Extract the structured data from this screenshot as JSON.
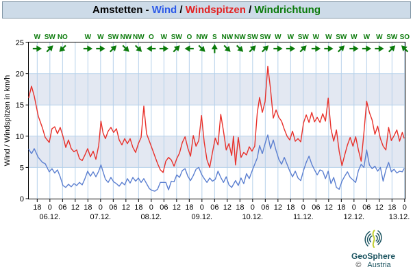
{
  "title": {
    "station": "Amstetten - ",
    "wind": "Wind",
    "sep1": " / ",
    "peaks": "Windspitzen",
    "sep2": " / ",
    "direction": "Windrichtung"
  },
  "logo": {
    "brand": "GeoSphere",
    "country": "Austria",
    "copyright": "©"
  },
  "colors": {
    "wind_line": "#5b7fd0",
    "peaks_line": "#e8302a",
    "direction_green": "#0a7a0a",
    "grid": "#b5d0ea",
    "band": "#e3e8f2",
    "titlebar_bg": "#cddbe8",
    "border": "#000000",
    "logo_teal": "#1a535f",
    "logo_lime": "#c1cf2e"
  },
  "chart_data": {
    "type": "line",
    "title": "Amstetten - Wind / Windspitzen / Windrichtung",
    "ylabel": "Wind / Windspitzen in km/h",
    "ylim": [
      0,
      25
    ],
    "yticks": [
      0,
      5,
      10,
      15,
      20,
      25
    ],
    "grid": true,
    "legend_position": "in-title",
    "hour_ticks": [
      "18",
      "0",
      "06",
      "12",
      "18",
      "0",
      "06",
      "12",
      "18",
      "0",
      "06",
      "12",
      "18",
      "0",
      "06",
      "12",
      "18",
      "0",
      "06",
      "12",
      "18",
      "0",
      "06",
      "12",
      "18",
      "0",
      "06",
      "12",
      "18",
      "0"
    ],
    "date_labels": [
      "06.12.",
      "07.12.",
      "08.12.",
      "09.12.",
      "10.12.",
      "11.12.",
      "12.12.",
      "13.12."
    ],
    "wind_directions": [
      "W",
      "SW",
      "NO",
      null,
      "W",
      "W",
      "SW",
      "NW",
      "NW",
      "O",
      "W",
      "SW",
      "O",
      "NW",
      "S",
      "NW",
      "NW",
      "SW",
      "SW",
      "W",
      "W",
      "SW",
      "W",
      "W",
      "SW",
      "W",
      "W",
      "W",
      "SW",
      "SO"
    ],
    "direction_series_name": "Windrichtung",
    "series": [
      {
        "name": "Wind",
        "unit": "km/h",
        "points": [
          [
            0,
            7.9
          ],
          [
            1.3,
            7.2
          ],
          [
            2.6,
            8.0
          ],
          [
            4.5,
            6.6
          ],
          [
            6.5,
            5.8
          ],
          [
            7.8,
            5.6
          ],
          [
            9.7,
            4.3
          ],
          [
            11,
            4.8
          ],
          [
            12.3,
            4.1
          ],
          [
            13.6,
            4.6
          ],
          [
            14.9,
            3.5
          ],
          [
            16.2,
            2.1
          ],
          [
            17.5,
            1.8
          ],
          [
            18.8,
            2.3
          ],
          [
            20.1,
            1.9
          ],
          [
            21.4,
            2.4
          ],
          [
            22.7,
            2.1
          ],
          [
            24,
            2.6
          ],
          [
            25.3,
            2.2
          ],
          [
            26.6,
            3.2
          ],
          [
            27.9,
            4.4
          ],
          [
            29.2,
            3.6
          ],
          [
            30.5,
            4.3
          ],
          [
            31.8,
            3.5
          ],
          [
            33.1,
            4.4
          ],
          [
            34.2,
            5.4
          ],
          [
            35.2,
            4.3
          ],
          [
            36.3,
            3.1
          ],
          [
            37.6,
            2.6
          ],
          [
            38.9,
            3.4
          ],
          [
            40.2,
            2.7
          ],
          [
            41.5,
            2.4
          ],
          [
            42.8,
            2.0
          ],
          [
            44.1,
            2.6
          ],
          [
            45.4,
            2.2
          ],
          [
            46.7,
            3.2
          ],
          [
            48,
            2.5
          ],
          [
            49.3,
            3.4
          ],
          [
            50.6,
            2.8
          ],
          [
            51.9,
            3.3
          ],
          [
            53.2,
            2.6
          ],
          [
            54.5,
            3.2
          ],
          [
            55.8,
            2.4
          ],
          [
            57.1,
            1.6
          ],
          [
            58.4,
            1.3
          ],
          [
            59.7,
            1.2
          ],
          [
            61,
            1.5
          ],
          [
            62.3,
            2.6
          ],
          [
            63.6,
            2.6
          ],
          [
            64.9,
            2.6
          ],
          [
            66.2,
            1.4
          ],
          [
            67.5,
            2.8
          ],
          [
            68.8,
            2.7
          ],
          [
            70.1,
            3.8
          ],
          [
            71.4,
            3.4
          ],
          [
            72.7,
            4.5
          ],
          [
            74,
            4.8
          ],
          [
            75.3,
            3.6
          ],
          [
            76.6,
            2.9
          ],
          [
            77.9,
            3.7
          ],
          [
            79.2,
            4.7
          ],
          [
            80.5,
            5.0
          ],
          [
            81.8,
            3.9
          ],
          [
            83.1,
            3.2
          ],
          [
            84.4,
            2.6
          ],
          [
            85.7,
            3.3
          ],
          [
            87,
            2.8
          ],
          [
            88.3,
            3.1
          ],
          [
            89.6,
            4.4
          ],
          [
            90.9,
            3.4
          ],
          [
            92.2,
            2.6
          ],
          [
            93.5,
            3.5
          ],
          [
            94.8,
            2.2
          ],
          [
            96.1,
            1.8
          ],
          [
            97.9,
            2.9
          ],
          [
            99.2,
            2.1
          ],
          [
            100.5,
            3.3
          ],
          [
            101.8,
            2.4
          ],
          [
            103.1,
            4.0
          ],
          [
            104.4,
            3.2
          ],
          [
            105.7,
            4.4
          ],
          [
            107,
            5.5
          ],
          [
            108.2,
            6.5
          ],
          [
            109.3,
            8.5
          ],
          [
            110.6,
            7.2
          ],
          [
            111.9,
            8.8
          ],
          [
            113.2,
            10.2
          ],
          [
            114.5,
            8.0
          ],
          [
            115.8,
            9.4
          ],
          [
            117.1,
            7.7
          ],
          [
            118.4,
            6.3
          ],
          [
            119.7,
            5.5
          ],
          [
            121,
            6.6
          ],
          [
            122.3,
            5.5
          ],
          [
            123.6,
            4.4
          ],
          [
            124.9,
            3.5
          ],
          [
            126.2,
            4.4
          ],
          [
            127.5,
            3.3
          ],
          [
            128.8,
            2.9
          ],
          [
            130.1,
            4.5
          ],
          [
            131.4,
            5.8
          ],
          [
            132.7,
            6.8
          ],
          [
            134,
            5.5
          ],
          [
            135.3,
            4.6
          ],
          [
            136.6,
            3.8
          ],
          [
            137.9,
            4.6
          ],
          [
            139.2,
            4.4
          ],
          [
            140.5,
            3.2
          ],
          [
            141.8,
            4.4
          ],
          [
            143.1,
            2.4
          ],
          [
            144.4,
            3.4
          ],
          [
            145.7,
            1.8
          ],
          [
            147,
            1.5
          ],
          [
            148.3,
            2.8
          ],
          [
            149.6,
            3.6
          ],
          [
            150.9,
            4.3
          ],
          [
            152.2,
            3.4
          ],
          [
            153.5,
            3.0
          ],
          [
            154.8,
            2.6
          ],
          [
            156.1,
            4.5
          ],
          [
            157.4,
            5.5
          ],
          [
            158.7,
            5.0
          ],
          [
            160,
            7.8
          ],
          [
            161.3,
            5.4
          ],
          [
            162.6,
            4.8
          ],
          [
            163.9,
            5.2
          ],
          [
            165.2,
            4.4
          ],
          [
            166.5,
            5.0
          ],
          [
            167.8,
            2.8
          ],
          [
            169.1,
            4.6
          ],
          [
            170.4,
            5.8
          ],
          [
            171.7,
            4.3
          ],
          [
            173,
            4.7
          ],
          [
            174.3,
            4.1
          ],
          [
            175.6,
            4.4
          ],
          [
            176.9,
            4.3
          ],
          [
            177.7,
            4.8
          ]
        ]
      },
      {
        "name": "Windspitzen",
        "unit": "km/h",
        "points": [
          [
            0,
            16.2
          ],
          [
            1.3,
            18.0
          ],
          [
            2.6,
            16.4
          ],
          [
            4.5,
            13.2
          ],
          [
            6.5,
            11.3
          ],
          [
            7.8,
            9.8
          ],
          [
            9.7,
            9.0
          ],
          [
            11,
            11.2
          ],
          [
            12.3,
            11.5
          ],
          [
            13.6,
            10.4
          ],
          [
            14.9,
            11.4
          ],
          [
            16.2,
            10.0
          ],
          [
            17.5,
            8.2
          ],
          [
            18.8,
            9.4
          ],
          [
            20.1,
            8.0
          ],
          [
            21.4,
            7.5
          ],
          [
            22.7,
            7.8
          ],
          [
            24,
            6.4
          ],
          [
            25.3,
            6.1
          ],
          [
            26.6,
            7.0
          ],
          [
            27.9,
            8.0
          ],
          [
            29.2,
            6.7
          ],
          [
            30.5,
            7.6
          ],
          [
            31.8,
            6.3
          ],
          [
            33.1,
            8.5
          ],
          [
            34.2,
            12.4
          ],
          [
            35.2,
            10.5
          ],
          [
            36.3,
            9.6
          ],
          [
            37.6,
            10.8
          ],
          [
            38.9,
            11.4
          ],
          [
            40.2,
            10.6
          ],
          [
            41.5,
            11.2
          ],
          [
            42.8,
            9.4
          ],
          [
            44.1,
            8.6
          ],
          [
            45.4,
            9.6
          ],
          [
            46.7,
            8.8
          ],
          [
            48,
            9.6
          ],
          [
            49.3,
            8.2
          ],
          [
            50.6,
            7.4
          ],
          [
            51.9,
            8.8
          ],
          [
            53.2,
            9.8
          ],
          [
            54.5,
            14.8
          ],
          [
            55.8,
            10.4
          ],
          [
            57.1,
            9.2
          ],
          [
            58.4,
            8.0
          ],
          [
            59.7,
            6.8
          ],
          [
            61,
            5.6
          ],
          [
            62.3,
            4.6
          ],
          [
            63.6,
            4.2
          ],
          [
            64.9,
            6.0
          ],
          [
            66.2,
            6.6
          ],
          [
            67.5,
            6.2
          ],
          [
            68.8,
            5.2
          ],
          [
            70.1,
            6.4
          ],
          [
            71.4,
            7.3
          ],
          [
            72.7,
            9.0
          ],
          [
            74,
            9.9
          ],
          [
            75.3,
            8.1
          ],
          [
            76.6,
            6.8
          ],
          [
            77.9,
            10.1
          ],
          [
            79.2,
            8.4
          ],
          [
            80.5,
            9.3
          ],
          [
            81.8,
            13.3
          ],
          [
            83.1,
            9.0
          ],
          [
            84.4,
            6.2
          ],
          [
            85.7,
            5.0
          ],
          [
            87,
            7.4
          ],
          [
            88.3,
            9.7
          ],
          [
            89.6,
            8.6
          ],
          [
            90.9,
            13.5
          ],
          [
            92.2,
            10.8
          ],
          [
            93.5,
            7.8
          ],
          [
            94.8,
            8.8
          ],
          [
            96.1,
            6.9
          ],
          [
            96.9,
            10.0
          ],
          [
            97.9,
            5.4
          ],
          [
            99.2,
            9.8
          ],
          [
            100.5,
            6.6
          ],
          [
            101.8,
            7.4
          ],
          [
            103.1,
            7.0
          ],
          [
            104.4,
            8.3
          ],
          [
            105.7,
            7.6
          ],
          [
            107,
            8.4
          ],
          [
            108.2,
            13.7
          ],
          [
            109.3,
            16.2
          ],
          [
            110.6,
            13.8
          ],
          [
            111.9,
            15.5
          ],
          [
            113.2,
            21.2
          ],
          [
            114.5,
            17.5
          ],
          [
            115.8,
            12.9
          ],
          [
            117.1,
            14.2
          ],
          [
            118.4,
            13.0
          ],
          [
            119.7,
            12.4
          ],
          [
            121,
            11.1
          ],
          [
            122.3,
            10.0
          ],
          [
            123.6,
            9.4
          ],
          [
            124.9,
            10.8
          ],
          [
            126.2,
            9.2
          ],
          [
            127.5,
            9.6
          ],
          [
            128.8,
            9.1
          ],
          [
            130.1,
            12.1
          ],
          [
            131.4,
            13.4
          ],
          [
            132.7,
            12.2
          ],
          [
            134,
            13.8
          ],
          [
            135.3,
            12.3
          ],
          [
            136.6,
            13.0
          ],
          [
            137.9,
            12.2
          ],
          [
            139.2,
            13.6
          ],
          [
            140.5,
            12.4
          ],
          [
            141.8,
            16.1
          ],
          [
            143.1,
            11.2
          ],
          [
            144.4,
            9.2
          ],
          [
            145.7,
            11.0
          ],
          [
            147,
            7.6
          ],
          [
            148.3,
            5.3
          ],
          [
            149.6,
            7.0
          ],
          [
            150.9,
            8.6
          ],
          [
            152.2,
            9.8
          ],
          [
            153.5,
            8.4
          ],
          [
            154.8,
            9.9
          ],
          [
            156.1,
            7.8
          ],
          [
            157.4,
            6.0
          ],
          [
            158.7,
            10.5
          ],
          [
            160,
            15.6
          ],
          [
            161.3,
            13.8
          ],
          [
            162.6,
            12.6
          ],
          [
            163.9,
            10.3
          ],
          [
            165.2,
            11.6
          ],
          [
            166.5,
            9.6
          ],
          [
            167.8,
            8.4
          ],
          [
            169.1,
            7.8
          ],
          [
            170.4,
            11.4
          ],
          [
            171.7,
            9.3
          ],
          [
            173,
            10.1
          ],
          [
            174.3,
            11.0
          ],
          [
            175.6,
            9.2
          ],
          [
            176.9,
            10.6
          ],
          [
            177.7,
            9.7
          ]
        ]
      }
    ]
  }
}
